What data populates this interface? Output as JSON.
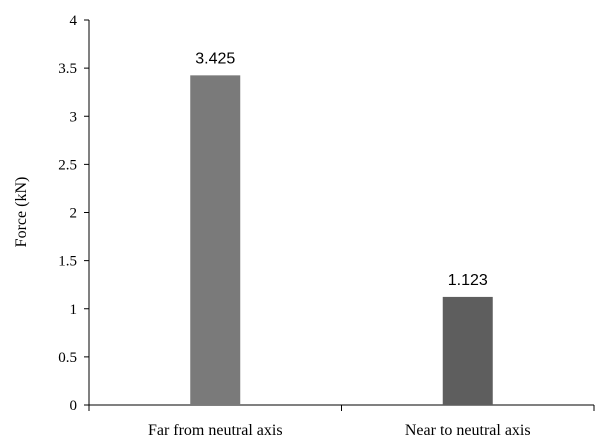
{
  "chart_data": {
    "type": "bar",
    "categories": [
      "Far from neutral axis",
      "Near to neutral axis"
    ],
    "values": [
      3.425,
      1.123
    ],
    "data_labels": [
      "3.425",
      "1.123"
    ],
    "bar_colors": [
      "#7a7a7a",
      "#5e5e5e"
    ],
    "ylabel": "Force (kN)",
    "xlabel": "",
    "ylim": [
      0,
      4
    ],
    "yticks": [
      0,
      0.5,
      1,
      1.5,
      2,
      2.5,
      3,
      3.5,
      4
    ],
    "ytick_labels": [
      "0",
      "0.5",
      "1",
      "1.5",
      "2",
      "2.5",
      "3",
      "3.5",
      "4"
    ],
    "grid": false,
    "legend": "none"
  }
}
